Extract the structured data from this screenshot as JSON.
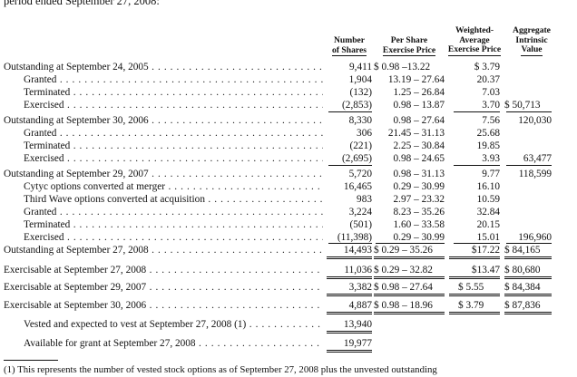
{
  "top_text": "period ended September 27, 2008:",
  "columns": {
    "shares": [
      "Number",
      "of Shares"
    ],
    "price": [
      "Per Share",
      "Exercise Price"
    ],
    "wavg": [
      "Weighted-",
      "Average",
      "Exercise Price"
    ],
    "intrinsic": [
      "Aggregate",
      "Intrinsic",
      "Value"
    ]
  },
  "rows": [
    {
      "label": "Outstanding at September 24, 2005",
      "shares": "9,411",
      "price": "$  0.98 –13.22",
      "wavg": "$  3.79",
      "intrinsic": ""
    },
    {
      "label": "Granted",
      "shares": "1,904",
      "price": "13.19 – 27.64",
      "wavg": "20.37",
      "intrinsic": ""
    },
    {
      "label": "Terminated",
      "shares": "(132)",
      "price": "1.25 – 26.84",
      "wavg": "7.03",
      "intrinsic": ""
    },
    {
      "label": "Exercised",
      "shares": "(2,853)",
      "price": "0.98 – 13.87",
      "wavg": "3.70",
      "intrinsic": "$  50,713"
    },
    {
      "label": "Outstanding at September 30, 2006",
      "shares": "8,330",
      "price": "0.98 – 27.64",
      "wavg": "7.56",
      "intrinsic": "120,030"
    },
    {
      "label": "Granted",
      "shares": "306",
      "price": "21.45 – 31.13",
      "wavg": "25.68",
      "intrinsic": ""
    },
    {
      "label": "Terminated",
      "shares": "(221)",
      "price": "2.25 – 30.84",
      "wavg": "19.85",
      "intrinsic": ""
    },
    {
      "label": "Exercised",
      "shares": "(2,695)",
      "price": "0.98 – 24.65",
      "wavg": "3.93",
      "intrinsic": "63,477"
    },
    {
      "label": "Outstanding at September 29, 2007",
      "shares": "5,720",
      "price": "0.98 – 31.13",
      "wavg": "9.77",
      "intrinsic": "118,599"
    },
    {
      "label": "Cytyc options converted at merger",
      "shares": "16,465",
      "price": "0.29 – 30.99",
      "wavg": "16.10",
      "intrinsic": ""
    },
    {
      "label": "Third Wave options converted at acquisition",
      "shares": "983",
      "price": "2.97 – 23.32",
      "wavg": "10.59",
      "intrinsic": ""
    },
    {
      "label": "Granted",
      "shares": "3,224",
      "price": "8.23 – 35.26",
      "wavg": "32.84",
      "intrinsic": ""
    },
    {
      "label": "Terminated",
      "shares": "(501)",
      "price": "1.60 – 33.58",
      "wavg": "20.15",
      "intrinsic": ""
    },
    {
      "label": "Exercised",
      "shares": "(11,398)",
      "price": "0.29 – 30.99",
      "wavg": "15.01",
      "intrinsic": "196,960"
    },
    {
      "label": "Outstanding at September 27, 2008",
      "shares": "14,493",
      "price": "$  0.29 – 35.26",
      "wavg": "$17.22",
      "intrinsic": "$  84,165"
    },
    {
      "label": "Exercisable at September 27, 2008",
      "shares": "11,036",
      "price": "$  0.29 – 32.82",
      "wavg": "$13.47",
      "intrinsic": "$  80,680"
    },
    {
      "label": "Exercisable at September 29, 2007",
      "shares": "3,382",
      "price": "$  0.98 – 27.64",
      "wavg": "$  5.55",
      "intrinsic": "$  84,384"
    },
    {
      "label": "Exercisable at September 30, 2006",
      "shares": "4,887",
      "price": "$  0.98 – 18.96",
      "wavg": "$  3.79",
      "intrinsic": "$  87,836"
    },
    {
      "label": "Vested and expected to vest at September 27, 2008 (1)",
      "shares": "13,940",
      "price": "",
      "wavg": "",
      "intrinsic": ""
    },
    {
      "label": "Available for grant at September 27, 2008",
      "shares": "19,977",
      "price": "",
      "wavg": "",
      "intrinsic": ""
    }
  ],
  "footnote": "(1)   This represents the number of vested stock options as of September 27, 2008 plus the unvested outstanding"
}
